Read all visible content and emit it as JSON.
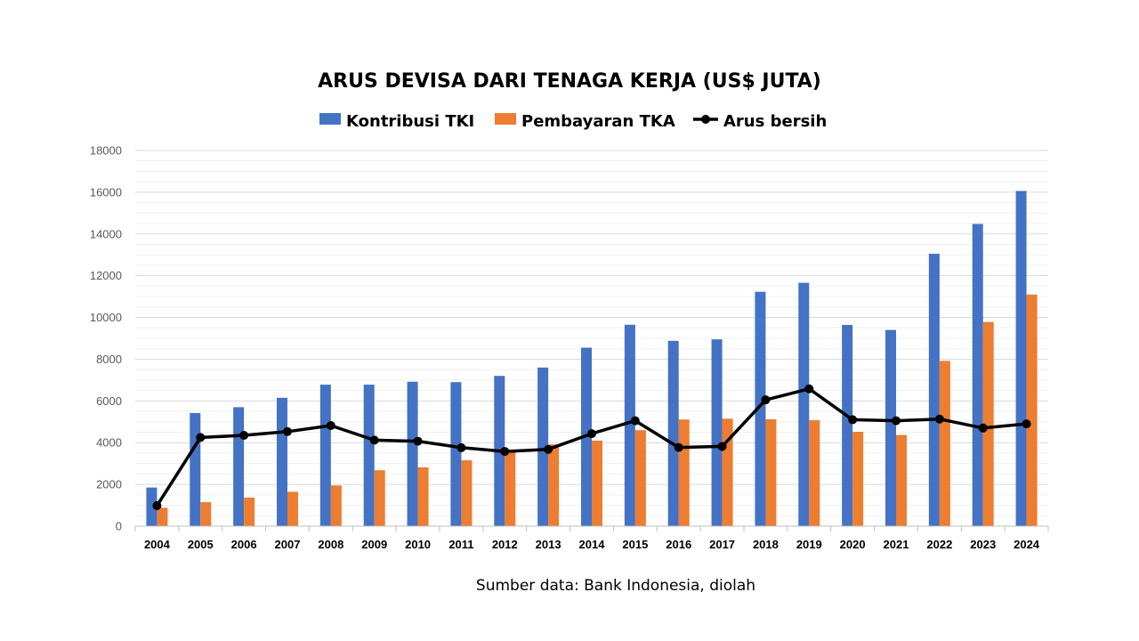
{
  "chart_data": {
    "type": "bar",
    "title": "ARUS DEVISA DARI TENAGA KERJA (US$ JUTA)",
    "categories": [
      "2004",
      "2005",
      "2006",
      "2007",
      "2008",
      "2009",
      "2010",
      "2011",
      "2012",
      "2013",
      "2014",
      "2015",
      "2016",
      "2017",
      "2018",
      "2019",
      "2020",
      "2021",
      "2022",
      "2023",
      "2024"
    ],
    "series": [
      {
        "name": "Kontribusi TKI",
        "type": "bar",
        "color": "#4472C4",
        "values": [
          1850,
          5420,
          5700,
          6150,
          6780,
          6780,
          6920,
          6900,
          7200,
          7600,
          8550,
          9650,
          8880,
          8950,
          11230,
          11660,
          9640,
          9400,
          13050,
          14480,
          16060
        ]
      },
      {
        "name": "Pembayaran TKA",
        "type": "bar",
        "color": "#ED7D31",
        "values": [
          880,
          1150,
          1370,
          1650,
          1950,
          2680,
          2820,
          3160,
          3600,
          3920,
          4100,
          4600,
          5110,
          5150,
          5120,
          5080,
          4520,
          4370,
          7920,
          9780,
          11100
        ]
      },
      {
        "name": "Arus bersih",
        "type": "line",
        "color": "#000000",
        "values": [
          980,
          4250,
          4350,
          4530,
          4820,
          4120,
          4070,
          3760,
          3580,
          3680,
          4430,
          5050,
          3770,
          3820,
          6050,
          6580,
          5100,
          5050,
          5130,
          4700,
          4900
        ]
      }
    ],
    "ylim": [
      0,
      18000
    ],
    "yticks": [
      0,
      2000,
      4000,
      6000,
      8000,
      10000,
      12000,
      14000,
      16000,
      18000
    ],
    "grid": true,
    "legend_position": "top-center",
    "xlabel": "",
    "ylabel": "",
    "source_note": "Sumber data: Bank Indonesia, diolah"
  }
}
